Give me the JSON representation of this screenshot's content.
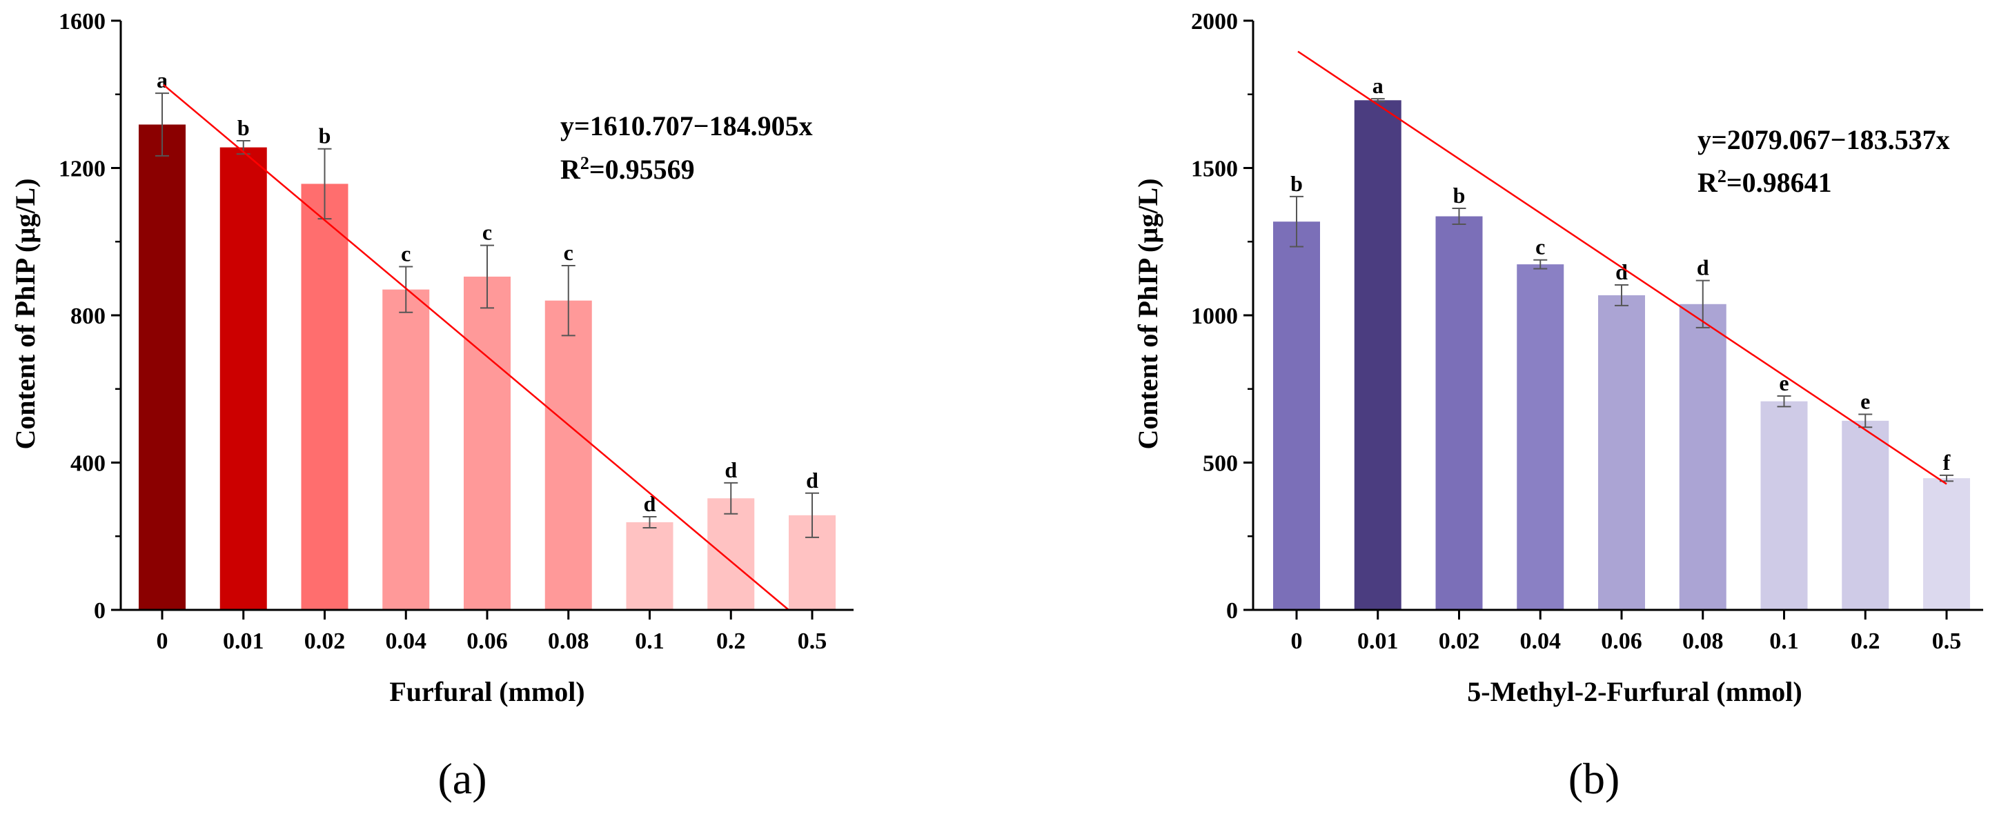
{
  "chart_data": [
    {
      "type": "bar",
      "panel_label": "(a)",
      "categories": [
        "0",
        "0.01",
        "0.02",
        "0.04",
        "0.06",
        "0.08",
        "0.1",
        "0.2",
        "0.5"
      ],
      "values": [
        1318,
        1256,
        1157,
        870,
        905,
        840,
        238,
        303,
        257
      ],
      "errors": [
        85,
        18,
        95,
        62,
        85,
        95,
        15,
        42,
        60
      ],
      "significance_letters": [
        "a",
        "b",
        "b",
        "c",
        "c",
        "c",
        "d",
        "d",
        "d"
      ],
      "bar_colors": [
        "#8b0000",
        "#cc0000",
        "#ff6e6e",
        "#ff9999",
        "#ff9999",
        "#ff9999",
        "#ffc2c2",
        "#ffc2c2",
        "#ffc2c2"
      ],
      "ylim": [
        0,
        1600
      ],
      "yticks": [
        "0",
        "400",
        "800",
        "1200",
        "1600"
      ],
      "xlabel": "Furfural (mmol)",
      "ylabel": "Content of PhIP (µg/L)",
      "fit_line": {
        "color": "#ff0000",
        "y_start": 1425.8,
        "slope_per_category": -184.905
      },
      "equation": "y=1610.707−184.905x",
      "r2_prefix": "R",
      "r2_sup": "2",
      "r2_value": "=0.95569"
    },
    {
      "type": "bar",
      "panel_label": "(b)",
      "categories": [
        "0",
        "0.01",
        "0.02",
        "0.04",
        "0.06",
        "0.08",
        "0.1",
        "0.2",
        "0.5"
      ],
      "values": [
        1318,
        1730,
        1336,
        1173,
        1068,
        1038,
        708,
        642,
        447
      ],
      "errors": [
        85,
        5,
        27,
        15,
        35,
        80,
        18,
        22,
        10
      ],
      "significance_letters": [
        "b",
        "a",
        "b",
        "c",
        "d",
        "d",
        "e",
        "e",
        "f"
      ],
      "bar_colors": [
        "#7b6fb8",
        "#4b3d80",
        "#7b6fb8",
        "#8a80c4",
        "#aba4d4",
        "#aba4d4",
        "#cfcbe7",
        "#cfcbe7",
        "#dcd9ee"
      ],
      "ylim": [
        0,
        2000
      ],
      "yticks": [
        "0",
        "500",
        "1000",
        "1500",
        "2000"
      ],
      "xlabel": "5-Methyl-2-Furfural (mmol)",
      "ylabel": "Content of PhIP (µg/L)",
      "fit_line": {
        "color": "#ff0000",
        "y_start": 1895.5,
        "slope_per_category": -183.537
      },
      "equation": "y=2079.067−183.537x",
      "r2_prefix": "R",
      "r2_sup": "2",
      "r2_value": "=0.98641"
    }
  ]
}
